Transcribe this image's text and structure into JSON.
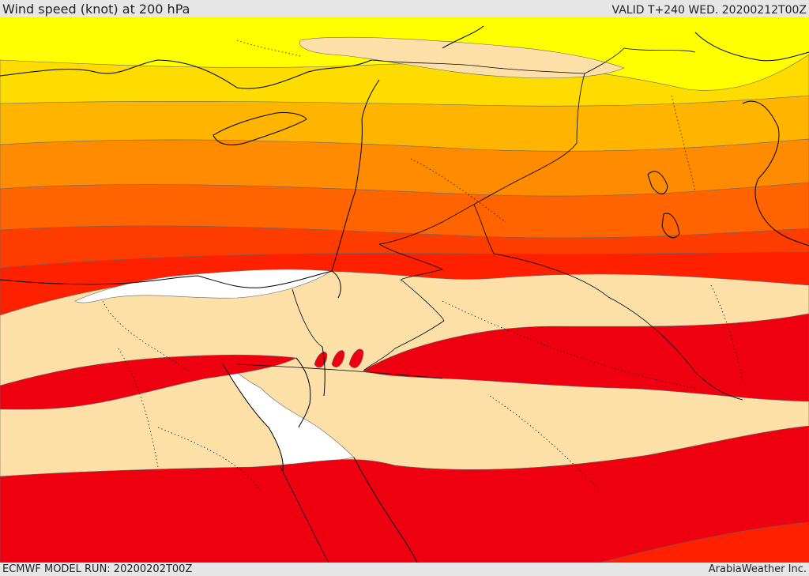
{
  "header": {
    "title": "Wind speed (knot) at 200 hPa",
    "valid": "VALID T+240 WED. 20200212T00Z"
  },
  "footer": {
    "model_run": "ECMWF MODEL RUN: 20200202T00Z",
    "brand": "ArabiaWeather Inc."
  },
  "palette": {
    "yellow": "#ffff00",
    "gold": "#ffdc00",
    "amber": "#ffb400",
    "orange": "#ff8c00",
    "deep_orange": "#ff6400",
    "red_orange": "#ff3c00",
    "scarlet": "#ff2000",
    "red": "#ee0010",
    "wheat": "#fde0a8",
    "calm": "#ffffff",
    "border": "#000000"
  }
}
